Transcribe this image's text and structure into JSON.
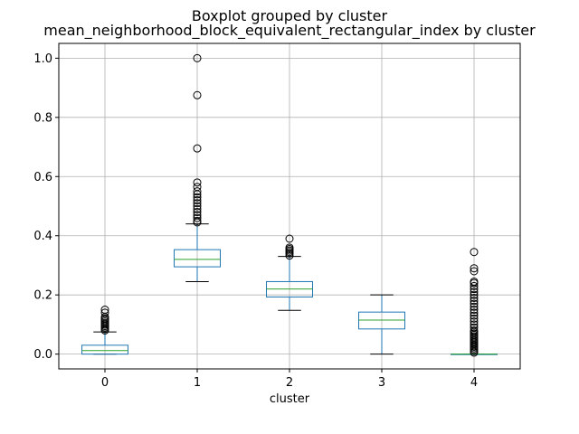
{
  "chart_data": {
    "type": "boxplot",
    "suptitle": "Boxplot grouped by cluster",
    "title": "mean_neighborhood_block_equivalent_rectangular_index by cluster",
    "xlabel": "cluster",
    "ylabel": "",
    "ylim": [
      -0.05,
      1.05
    ],
    "yticks": [
      "0.0",
      "0.2",
      "0.4",
      "0.6",
      "0.8",
      "1.0"
    ],
    "grid": true,
    "categories": [
      "0",
      "1",
      "2",
      "3",
      "4"
    ],
    "boxes": [
      {
        "whislo": 0.0,
        "q1": 0.0,
        "med": 0.012,
        "q3": 0.03,
        "whishi": 0.075,
        "fliers": [
          0.08,
          0.085,
          0.09,
          0.095,
          0.1,
          0.105,
          0.11,
          0.115,
          0.12,
          0.125,
          0.14,
          0.15
        ]
      },
      {
        "whislo": 0.245,
        "q1": 0.295,
        "med": 0.32,
        "q3": 0.353,
        "whishi": 0.44,
        "fliers": [
          0.445,
          0.45,
          0.46,
          0.47,
          0.48,
          0.49,
          0.5,
          0.51,
          0.52,
          0.53,
          0.54,
          0.55,
          0.565,
          0.58,
          0.695,
          0.875,
          1.0
        ]
      },
      {
        "whislo": 0.148,
        "q1": 0.193,
        "med": 0.22,
        "q3": 0.245,
        "whishi": 0.33,
        "fliers": [
          0.333,
          0.34,
          0.345,
          0.35,
          0.355,
          0.36,
          0.39
        ]
      },
      {
        "whislo": 0.0,
        "q1": 0.085,
        "med": 0.115,
        "q3": 0.142,
        "whishi": 0.2,
        "fliers": []
      },
      {
        "whislo": 0.0,
        "q1": 0.0,
        "med": 0.0,
        "q3": 0.0,
        "whishi": 0.0,
        "fliers": [
          0.005,
          0.01,
          0.015,
          0.02,
          0.025,
          0.03,
          0.035,
          0.04,
          0.045,
          0.05,
          0.055,
          0.06,
          0.065,
          0.07,
          0.075,
          0.08,
          0.09,
          0.1,
          0.11,
          0.12,
          0.13,
          0.14,
          0.15,
          0.16,
          0.17,
          0.18,
          0.19,
          0.2,
          0.21,
          0.22,
          0.23,
          0.24,
          0.245,
          0.28,
          0.29,
          0.345
        ]
      }
    ],
    "colors": {
      "box": "#1f77b4",
      "median": "#2ca02c",
      "whisker": "#000000",
      "flier": "#000000",
      "grid": "#b0b0b0"
    }
  }
}
